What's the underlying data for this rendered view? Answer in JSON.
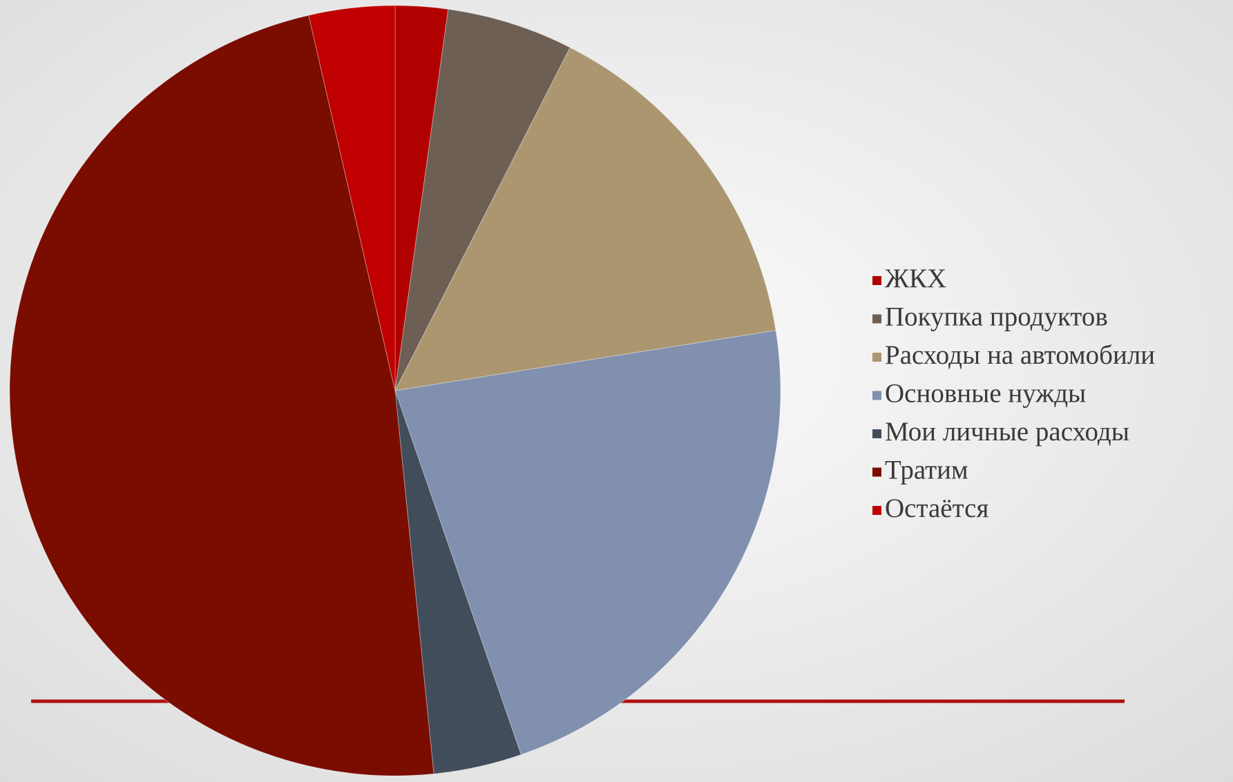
{
  "chart_data": {
    "type": "pie",
    "categories": [
      "ЖКХ",
      "Покупка продуктов",
      "Расходы на автомобили",
      "Основные нужды",
      "Мои личные расходы",
      "Тратим",
      "Остаётся"
    ],
    "values": [
      2.2,
      5.3,
      15,
      22.2,
      3.7,
      48,
      3.6
    ],
    "colors": [
      "#b00000",
      "#6e5f55",
      "#ab9670",
      "#8090ae",
      "#424d5c",
      "#7a0c00",
      "#c00000"
    ],
    "legend": "right"
  }
}
